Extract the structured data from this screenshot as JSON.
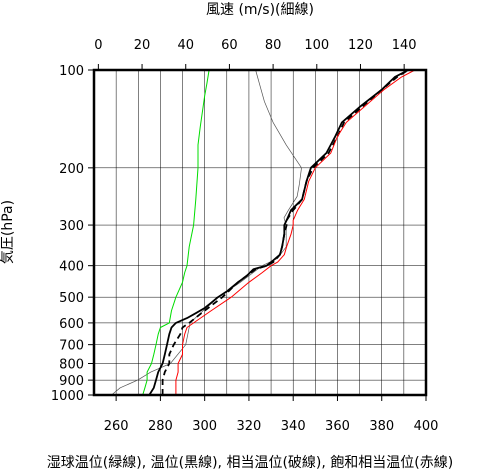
{
  "chart_data": {
    "type": "line",
    "top_axis_title": "風速 (m/s)(細線)",
    "ylabel": "気圧(hPa)",
    "bottom_caption": "湿球温位(緑線), 温位(黒線), 相当温位(破線), 飽和相当温位(赤線)",
    "x_temp_range": [
      250,
      400
    ],
    "x_temp_ticks": [
      "260",
      "280",
      "300",
      "320",
      "340",
      "360",
      "380",
      "400"
    ],
    "x_wind_range": [
      -2,
      150
    ],
    "x_wind_ticks": [
      "0",
      "20",
      "40",
      "60",
      "80",
      "100",
      "120",
      "140"
    ],
    "y_scale": "log",
    "y_range": [
      1000,
      100
    ],
    "y_ticks": [
      "100",
      "200",
      "300",
      "400",
      "500",
      "600",
      "700",
      "800",
      "900",
      "1000"
    ],
    "grid": true,
    "series": [
      {
        "key": "wind",
        "color": "#555555",
        "dash": "",
        "width": 0.7,
        "axis": "wind",
        "points": [
          [
            6,
            1000
          ],
          [
            10,
            950
          ],
          [
            18,
            900
          ],
          [
            24,
            850
          ],
          [
            33,
            800
          ],
          [
            40,
            700
          ],
          [
            42,
            600
          ],
          [
            48,
            550
          ],
          [
            55,
            500
          ],
          [
            65,
            450
          ],
          [
            75,
            400
          ],
          [
            82,
            380
          ],
          [
            86,
            350
          ],
          [
            86,
            320
          ],
          [
            86,
            300
          ],
          [
            85,
            285
          ],
          [
            87,
            270
          ],
          [
            91,
            245
          ],
          [
            92,
            225
          ],
          [
            93,
            200
          ],
          [
            86,
            170
          ],
          [
            80,
            145
          ],
          [
            76,
            125
          ],
          [
            72,
            100
          ]
        ]
      },
      {
        "key": "wet_bulb_potential_temperature",
        "color": "#00dd00",
        "dash": "",
        "width": 1,
        "axis": "temp",
        "points": [
          [
            272,
            1000
          ],
          [
            273,
            950
          ],
          [
            274,
            900
          ],
          [
            274,
            850
          ],
          [
            276,
            800
          ],
          [
            277,
            750
          ],
          [
            278,
            700
          ],
          [
            279,
            650
          ],
          [
            280,
            620
          ],
          [
            284,
            600
          ],
          [
            285,
            550
          ],
          [
            287,
            500
          ],
          [
            290,
            450
          ],
          [
            291,
            420
          ],
          [
            292,
            400
          ],
          [
            293,
            350
          ],
          [
            295,
            300
          ],
          [
            296,
            250
          ],
          [
            297,
            200
          ],
          [
            297,
            170
          ],
          [
            298,
            150
          ],
          [
            300,
            120
          ],
          [
            301,
            110
          ],
          [
            302,
            100
          ]
        ]
      },
      {
        "key": "equivalent_potential_temperature",
        "color": "#000000",
        "dash": "6,4",
        "width": 1.8,
        "axis": "temp",
        "points": [
          [
            281,
            1000
          ],
          [
            281,
            950
          ],
          [
            281,
            900
          ],
          [
            282,
            850
          ],
          [
            284,
            800
          ],
          [
            284,
            750
          ],
          [
            286,
            700
          ],
          [
            289,
            650
          ],
          [
            290,
            620
          ],
          [
            293,
            600
          ],
          [
            300,
            550
          ],
          [
            308,
            500
          ],
          [
            315,
            450
          ],
          [
            323,
            410
          ],
          [
            328,
            400
          ],
          [
            331,
            390
          ],
          [
            334,
            370
          ],
          [
            335,
            350
          ],
          [
            336,
            320
          ],
          [
            337,
            300
          ],
          [
            337,
            290
          ],
          [
            340,
            270
          ],
          [
            344,
            250
          ],
          [
            346,
            220
          ],
          [
            349,
            200
          ],
          [
            356,
            180
          ],
          [
            360,
            160
          ],
          [
            363,
            145
          ],
          [
            371,
            130
          ],
          [
            380,
            115
          ],
          [
            387,
            105
          ],
          [
            392,
            100
          ]
        ]
      },
      {
        "key": "saturated_equivalent_potential_temperature",
        "color": "#ff0000",
        "dash": "",
        "width": 1,
        "axis": "temp",
        "points": [
          [
            287,
            1000
          ],
          [
            287,
            950
          ],
          [
            287,
            900
          ],
          [
            288,
            850
          ],
          [
            288,
            800
          ],
          [
            290,
            750
          ],
          [
            290,
            700
          ],
          [
            291,
            650
          ],
          [
            292,
            620
          ],
          [
            295,
            600
          ],
          [
            303,
            550
          ],
          [
            312,
            500
          ],
          [
            320,
            450
          ],
          [
            326,
            420
          ],
          [
            330,
            400
          ],
          [
            333,
            390
          ],
          [
            336,
            370
          ],
          [
            337,
            350
          ],
          [
            339,
            320
          ],
          [
            340,
            300
          ],
          [
            340,
            290
          ],
          [
            342,
            270
          ],
          [
            345,
            250
          ],
          [
            347,
            220
          ],
          [
            350,
            200
          ],
          [
            357,
            180
          ],
          [
            360,
            160
          ],
          [
            364,
            145
          ],
          [
            372,
            130
          ],
          [
            381,
            115
          ],
          [
            389,
            105
          ],
          [
            395,
            100
          ]
        ]
      },
      {
        "key": "potential_temperature",
        "color": "#000000",
        "dash": "",
        "width": 1.8,
        "axis": "temp",
        "points": [
          [
            275,
            1000
          ],
          [
            277,
            950
          ],
          [
            278,
            900
          ],
          [
            279,
            850
          ],
          [
            281,
            800
          ],
          [
            282,
            750
          ],
          [
            283,
            700
          ],
          [
            284,
            650
          ],
          [
            285,
            620
          ],
          [
            287,
            600
          ],
          [
            292,
            580
          ],
          [
            296,
            560
          ],
          [
            300,
            540
          ],
          [
            303,
            520
          ],
          [
            306,
            500
          ],
          [
            310,
            480
          ],
          [
            315,
            450
          ],
          [
            319,
            430
          ],
          [
            322,
            410
          ],
          [
            325,
            405
          ],
          [
            328,
            400
          ],
          [
            331,
            385
          ],
          [
            334,
            370
          ],
          [
            335,
            350
          ],
          [
            336,
            320
          ],
          [
            336,
            300
          ],
          [
            337,
            290
          ],
          [
            339,
            270
          ],
          [
            344,
            250
          ],
          [
            346,
            220
          ],
          [
            348,
            200
          ],
          [
            355,
            180
          ],
          [
            359,
            160
          ],
          [
            362,
            145
          ],
          [
            370,
            130
          ],
          [
            380,
            115
          ],
          [
            386,
            105
          ],
          [
            392,
            100
          ]
        ]
      }
    ]
  }
}
